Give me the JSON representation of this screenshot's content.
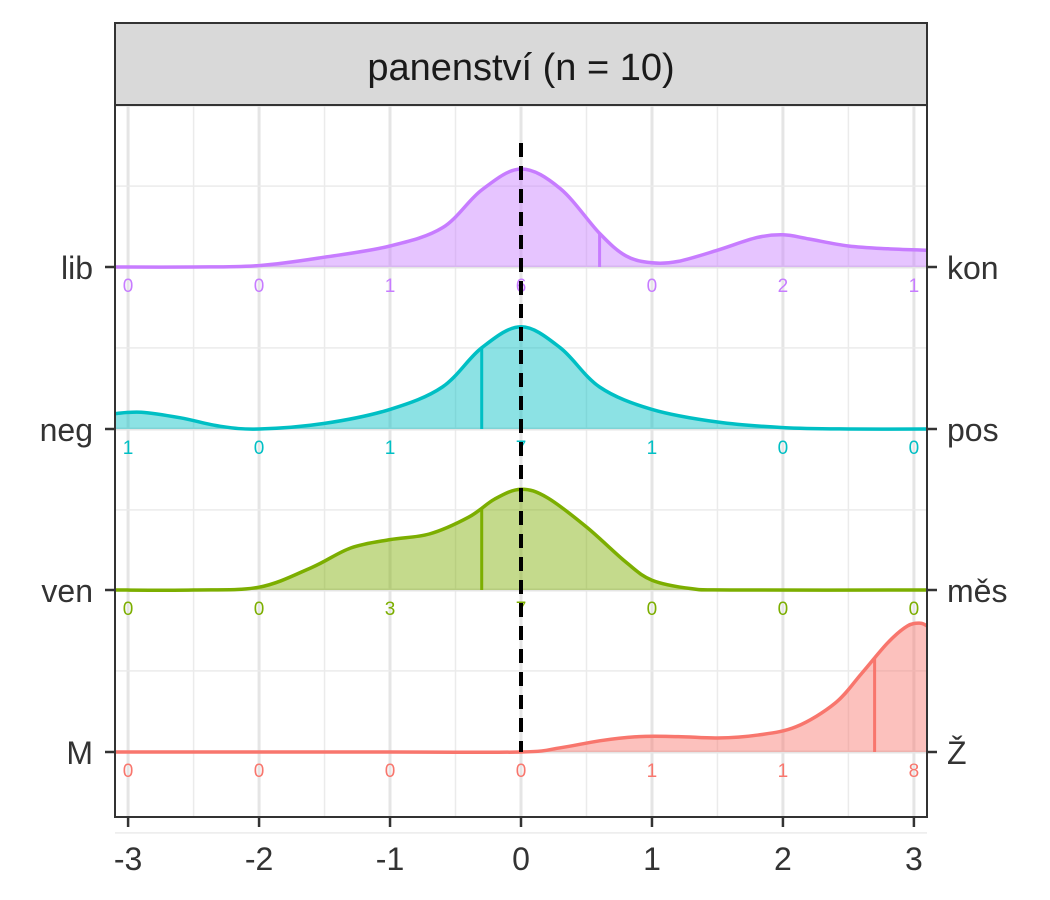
{
  "chart_data": {
    "type": "area",
    "title": "panenství (n = 10)",
    "xlabel": "",
    "ylabel": "",
    "xlim": [
      -3.1,
      3.1
    ],
    "x_ticks": [
      -3,
      -2,
      -1,
      0,
      1,
      2,
      3
    ],
    "x_tick_labels": [
      "-3",
      "-2",
      "-1",
      "0",
      "1",
      "2",
      "3"
    ],
    "count_positions": [
      -3,
      -2,
      -1,
      0,
      1,
      2,
      3
    ],
    "reference_line_x": 0,
    "grid": true,
    "legend": "none",
    "series": [
      {
        "left_label": "lib",
        "right_label": "kon",
        "color": "#C77CFF",
        "counts": [
          0,
          0,
          1,
          6,
          0,
          2,
          1
        ],
        "marker_x": 0.6,
        "density": [
          [
            -3.1,
            0.0
          ],
          [
            -2.5,
            0.0
          ],
          [
            -2.0,
            0.01
          ],
          [
            -1.5,
            0.07
          ],
          [
            -1.0,
            0.15
          ],
          [
            -0.6,
            0.28
          ],
          [
            -0.3,
            0.55
          ],
          [
            0.0,
            0.7
          ],
          [
            0.3,
            0.56
          ],
          [
            0.6,
            0.24
          ],
          [
            0.8,
            0.08
          ],
          [
            1.0,
            0.03
          ],
          [
            1.2,
            0.04
          ],
          [
            1.5,
            0.12
          ],
          [
            1.8,
            0.21
          ],
          [
            2.0,
            0.23
          ],
          [
            2.2,
            0.2
          ],
          [
            2.5,
            0.15
          ],
          [
            2.8,
            0.13
          ],
          [
            3.1,
            0.12
          ]
        ]
      },
      {
        "left_label": "neg",
        "right_label": "pos",
        "color": "#00BFC4",
        "counts": [
          1,
          0,
          1,
          7,
          1,
          0,
          0
        ],
        "marker_x": -0.3,
        "density": [
          [
            -3.1,
            0.11
          ],
          [
            -2.9,
            0.12
          ],
          [
            -2.6,
            0.08
          ],
          [
            -2.3,
            0.02
          ],
          [
            -2.0,
            0.0
          ],
          [
            -1.5,
            0.04
          ],
          [
            -1.0,
            0.14
          ],
          [
            -0.6,
            0.3
          ],
          [
            -0.3,
            0.58
          ],
          [
            0.0,
            0.73
          ],
          [
            0.3,
            0.58
          ],
          [
            0.6,
            0.3
          ],
          [
            1.0,
            0.14
          ],
          [
            1.5,
            0.05
          ],
          [
            2.0,
            0.01
          ],
          [
            2.5,
            0.0
          ],
          [
            3.1,
            0.0
          ]
        ]
      },
      {
        "left_label": "ven",
        "right_label": "měs",
        "color": "#7CAE00",
        "counts": [
          0,
          0,
          3,
          7,
          0,
          0,
          0
        ],
        "marker_x": -0.3,
        "density": [
          [
            -3.1,
            0.0
          ],
          [
            -2.5,
            0.0
          ],
          [
            -2.0,
            0.02
          ],
          [
            -1.6,
            0.16
          ],
          [
            -1.3,
            0.3
          ],
          [
            -1.0,
            0.36
          ],
          [
            -0.7,
            0.4
          ],
          [
            -0.4,
            0.52
          ],
          [
            -0.2,
            0.65
          ],
          [
            0.0,
            0.72
          ],
          [
            0.2,
            0.66
          ],
          [
            0.5,
            0.45
          ],
          [
            0.8,
            0.2
          ],
          [
            1.0,
            0.07
          ],
          [
            1.3,
            0.01
          ],
          [
            1.6,
            0.0
          ],
          [
            3.1,
            0.0
          ]
        ]
      },
      {
        "left_label": "M",
        "right_label": "Ž",
        "color": "#F8766D",
        "counts": [
          0,
          0,
          0,
          0,
          1,
          1,
          8
        ],
        "marker_x": 2.7,
        "density": [
          [
            -3.1,
            0.0
          ],
          [
            -1.0,
            0.0
          ],
          [
            0.0,
            0.0
          ],
          [
            0.3,
            0.03
          ],
          [
            0.6,
            0.08
          ],
          [
            0.9,
            0.11
          ],
          [
            1.2,
            0.11
          ],
          [
            1.5,
            0.1
          ],
          [
            1.8,
            0.12
          ],
          [
            2.1,
            0.18
          ],
          [
            2.4,
            0.35
          ],
          [
            2.6,
            0.56
          ],
          [
            2.8,
            0.78
          ],
          [
            2.95,
            0.9
          ],
          [
            3.05,
            0.92
          ],
          [
            3.1,
            0.9
          ]
        ]
      }
    ]
  }
}
